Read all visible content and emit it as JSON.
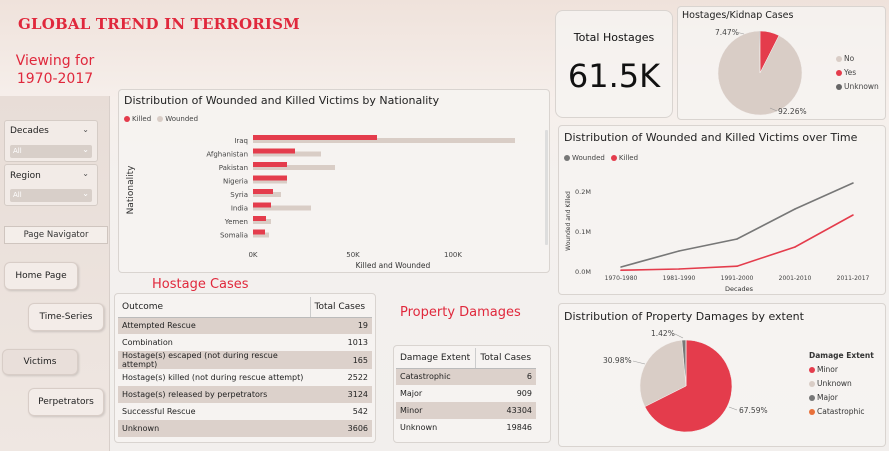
{
  "header": {
    "title": "GLOBAL TREND IN TERRORISM",
    "viewing_line1": "Viewing for",
    "viewing_line2": "1970-2017"
  },
  "filters": {
    "decades": {
      "label": "Decades",
      "value": "All"
    },
    "region": {
      "label": "Region",
      "value": "All"
    }
  },
  "nav": {
    "navigator_label": "Page Navigator",
    "home": "Home Page",
    "time_series": "Time-Series",
    "victims": "Victims",
    "perpetrators": "Perpetrators"
  },
  "kpi": {
    "label": "Total Hostages",
    "value": "61.5K"
  },
  "colors": {
    "accent": "#e0283c",
    "wounded": "#d9cdc6",
    "killed": "#e43c4c",
    "grey_line": "#777777"
  },
  "hostage_pie": {
    "title": "Hostages/Kidnap Cases",
    "label_yes": "7.47%",
    "label_no": "92.26%",
    "legend": [
      "No",
      "Yes",
      "Unknown"
    ]
  },
  "nationality_chart": {
    "title": "Distribution of Wounded and Killed Victims by Nationality",
    "legend_killed": "Killed",
    "legend_wounded": "Wounded",
    "ylabel": "Nationality",
    "xlabel": "Killed and Wounded",
    "ticks": [
      "0K",
      "50K",
      "100K"
    ]
  },
  "time_chart": {
    "title": "Distribution of Wounded and Killed Victims over Time",
    "legend_wounded": "Wounded",
    "legend_killed": "Killed",
    "ylabel": "Wounded and Killed",
    "xlabel": "Decades",
    "yticks": [
      "0.0M",
      "0.1M",
      "0.2M"
    ]
  },
  "hostage_table": {
    "heading": "Hostage Cases",
    "col_outcome": "Outcome",
    "col_total": "Total Cases",
    "rows": [
      {
        "outcome": "Attempted Rescue",
        "total": "19"
      },
      {
        "outcome": "Combination",
        "total": "1013"
      },
      {
        "outcome": "Hostage(s) escaped (not during rescue attempt)",
        "total": "165"
      },
      {
        "outcome": "Hostage(s) killed (not during rescue attempt)",
        "total": "2522"
      },
      {
        "outcome": "Hostage(s) released by perpetrators",
        "total": "3124"
      },
      {
        "outcome": "Successful Rescue",
        "total": "542"
      },
      {
        "outcome": "Unknown",
        "total": "3606"
      }
    ]
  },
  "property_table": {
    "heading": "Property Damages",
    "col_extent": "Damage Extent",
    "col_total": "Total Cases",
    "rows": [
      {
        "extent": "Catastrophic",
        "total": "6"
      },
      {
        "extent": "Major",
        "total": "909"
      },
      {
        "extent": "Minor",
        "total": "43304"
      },
      {
        "extent": "Unknown",
        "total": "19846"
      }
    ]
  },
  "property_pie": {
    "title": "Distribution of Property Damages by extent",
    "legend_title": "Damage Extent",
    "legend": [
      "Minor",
      "Unknown",
      "Major",
      "Catastrophic"
    ],
    "label_major": "1.42%",
    "label_unknown": "30.98%",
    "label_minor": "67.59%"
  },
  "chart_data": [
    {
      "type": "bar",
      "title": "Distribution of Wounded and Killed Victims by Nationality",
      "xlabel": "Killed and Wounded",
      "ylabel": "Nationality",
      "categories": [
        "Iraq",
        "Afghanistan",
        "Pakistan",
        "Nigeria",
        "Syria",
        "India",
        "Yemen",
        "Somalia"
      ],
      "series": [
        {
          "name": "Wounded",
          "values": [
            131000,
            34000,
            41000,
            17000,
            14000,
            29000,
            9000,
            8000
          ]
        },
        {
          "name": "Killed",
          "values": [
            62000,
            21000,
            17000,
            17000,
            10000,
            9000,
            6500,
            6000
          ]
        }
      ],
      "xlim": [
        0,
        140000
      ]
    },
    {
      "type": "line",
      "title": "Distribution of Wounded and Killed Victims over Time",
      "xlabel": "Decades",
      "ylabel": "Wounded and Killed",
      "categories": [
        "1970-1980",
        "1981-1990",
        "1991-2000",
        "2001-2010",
        "2011-2017"
      ],
      "series": [
        {
          "name": "Wounded",
          "values": [
            10000,
            50000,
            80000,
            155000,
            220000
          ]
        },
        {
          "name": "Killed",
          "values": [
            2000,
            5000,
            12000,
            60000,
            140000
          ]
        }
      ],
      "ylim": [
        0,
        240000
      ]
    },
    {
      "type": "pie",
      "title": "Hostages/Kidnap Cases",
      "categories": [
        "No",
        "Yes",
        "Unknown"
      ],
      "values": [
        92.26,
        7.47,
        0.27
      ]
    },
    {
      "type": "pie",
      "title": "Distribution of Property Damages by extent",
      "categories": [
        "Minor",
        "Unknown",
        "Major",
        "Catastrophic"
      ],
      "values": [
        67.59,
        30.98,
        1.42,
        0.01
      ]
    }
  ]
}
